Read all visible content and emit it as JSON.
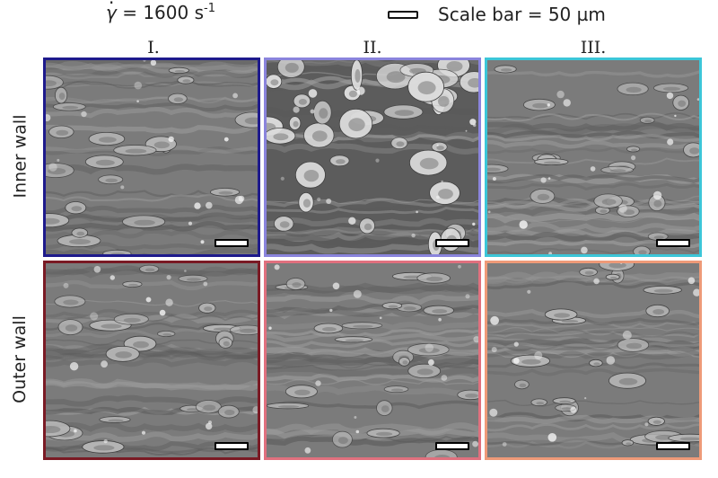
{
  "header": {
    "shear_rate": {
      "symbol": "γ",
      "value_text": " = 1600 s",
      "exponent": "-1"
    },
    "scale_legend": "Scale bar = 50 µm"
  },
  "columns": [
    "I.",
    "II.",
    "III."
  ],
  "rows": [
    "Inner wall",
    "Outer wall"
  ],
  "panel_colors": {
    "inner": [
      "#1e1a8c",
      "#8a84dc",
      "#3cc6d8"
    ],
    "outer": [
      "#7a1a24",
      "#e0707e",
      "#ee9a78"
    ]
  }
}
